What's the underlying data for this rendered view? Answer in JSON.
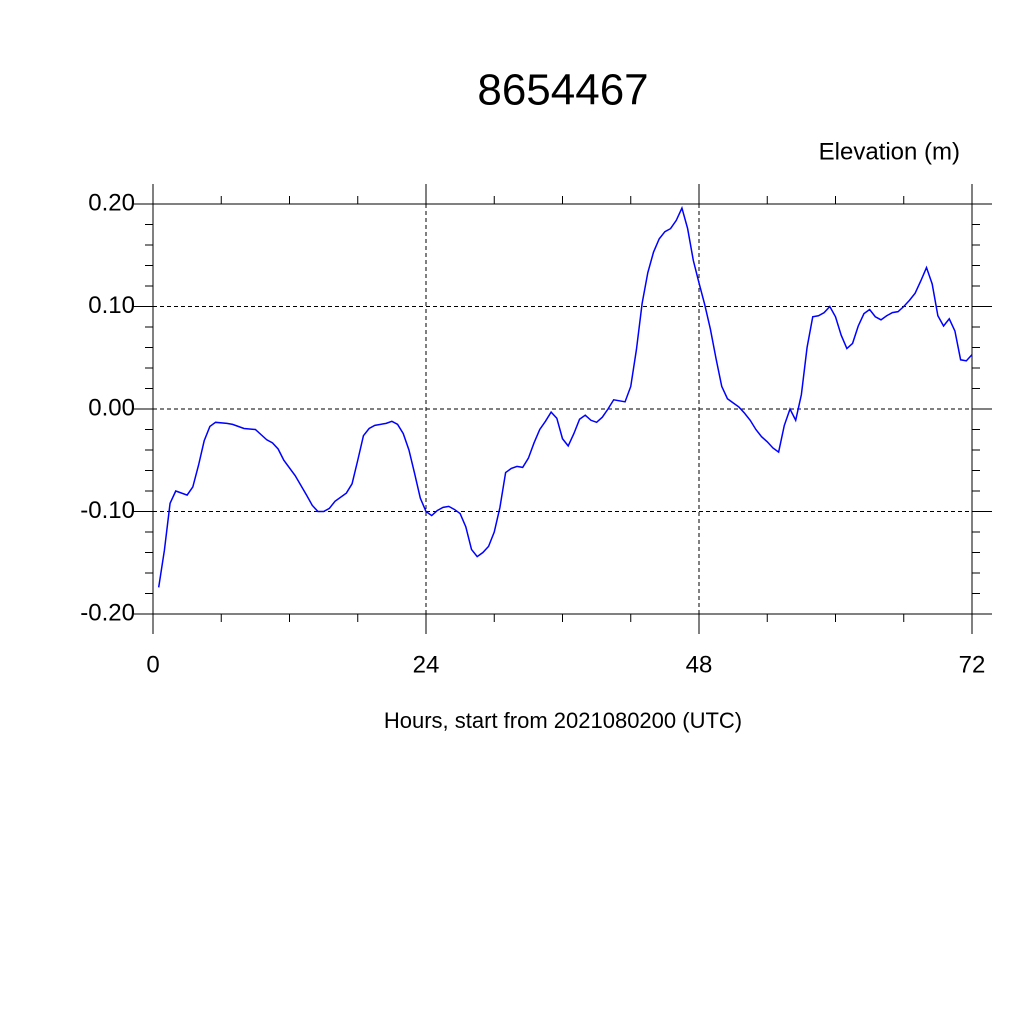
{
  "chart_data": {
    "type": "line",
    "title": "8654467",
    "ylabel": "Elevation (m)",
    "xlabel": "Hours, start from 2021080200 (UTC)",
    "x": [
      0.5,
      1,
      1.5,
      2,
      3,
      3.5,
      4,
      4.5,
      5,
      5.5,
      6.5,
      7,
      8,
      9,
      9.5,
      10,
      10.5,
      11,
      11.5,
      12.5,
      13.5,
      14,
      14.5,
      15,
      15.5,
      16,
      17,
      17.5,
      18,
      18.5,
      19,
      19.5,
      20.5,
      21,
      21.5,
      22,
      22.5,
      23,
      23.5,
      24,
      24.5,
      25,
      25.5,
      26,
      26.5,
      27,
      27.5,
      28,
      28.5,
      29,
      29.5,
      30,
      30.5,
      31,
      31.5,
      32,
      32.5,
      33,
      33.5,
      34,
      34.5,
      35,
      35.5,
      36,
      36.5,
      37,
      37.5,
      38,
      38.5,
      39,
      39.5,
      40,
      40.5,
      41.5,
      42,
      42.5,
      43,
      43.5,
      44,
      44.5,
      45,
      45.5,
      46,
      46.5,
      47,
      47.5,
      48,
      48.5,
      49,
      49.5,
      50,
      50.5,
      51,
      51.5,
      52,
      52.5,
      53,
      53.5,
      54,
      54.5,
      55,
      55.5,
      56,
      56.5,
      57,
      57.5,
      58,
      58.5,
      59,
      59.5,
      60,
      60.5,
      61,
      61.5,
      62,
      62.5,
      63,
      63.5,
      64,
      64.5,
      65,
      65.5,
      66,
      66.5,
      67,
      67.5,
      68,
      68.5,
      69,
      69.5,
      70,
      70.5,
      71,
      71.5,
      72
    ],
    "series": [
      {
        "color": "#0000ff",
        "values": [
          -0.174,
          -0.138,
          -0.092,
          -0.08,
          -0.084,
          -0.076,
          -0.055,
          -0.031,
          -0.017,
          -0.013,
          -0.014,
          -0.015,
          -0.019,
          -0.02,
          -0.025,
          -0.03,
          -0.033,
          -0.039,
          -0.05,
          -0.065,
          -0.084,
          -0.094,
          -0.1,
          -0.1,
          -0.097,
          -0.09,
          -0.082,
          -0.073,
          -0.05,
          -0.026,
          -0.019,
          -0.016,
          -0.014,
          -0.012,
          -0.015,
          -0.024,
          -0.04,
          -0.063,
          -0.087,
          -0.1,
          -0.104,
          -0.099,
          -0.096,
          -0.095,
          -0.098,
          -0.102,
          -0.115,
          -0.137,
          -0.144,
          -0.14,
          -0.134,
          -0.12,
          -0.096,
          -0.062,
          -0.058,
          -0.056,
          -0.057,
          -0.048,
          -0.033,
          -0.02,
          -0.012,
          -0.003,
          -0.009,
          -0.029,
          -0.036,
          -0.024,
          -0.01,
          -0.006,
          -0.011,
          -0.013,
          -0.008,
          0.0,
          0.009,
          0.007,
          0.022,
          0.058,
          0.103,
          0.133,
          0.153,
          0.166,
          0.173,
          0.176,
          0.184,
          0.196,
          0.176,
          0.145,
          0.123,
          0.102,
          0.078,
          0.049,
          0.022,
          0.01,
          0.006,
          0.002,
          -0.004,
          -0.011,
          -0.02,
          -0.027,
          -0.032,
          -0.038,
          -0.042,
          -0.016,
          0.0,
          -0.011,
          0.014,
          0.06,
          0.09,
          0.091,
          0.094,
          0.1,
          0.09,
          0.072,
          0.059,
          0.064,
          0.081,
          0.093,
          0.097,
          0.09,
          0.087,
          0.091,
          0.094,
          0.095,
          0.1,
          0.106,
          0.113,
          0.125,
          0.138,
          0.122,
          0.091,
          0.081,
          0.088,
          0.076,
          0.048,
          0.047,
          0.053
        ]
      }
    ],
    "xlim": [
      0,
      72
    ],
    "xticks": [
      0,
      24,
      48,
      72
    ],
    "ylim": [
      -0.2,
      0.2
    ],
    "yticks": [
      {
        "value": 0.2,
        "label": "0.20"
      },
      {
        "value": 0.1,
        "label": "0.10"
      },
      {
        "value": 0,
        "label": "0.00"
      },
      {
        "value": -0.1,
        "label": "-0.10"
      },
      {
        "value": -0.2,
        "label": "-0.20"
      }
    ],
    "grid": true
  }
}
